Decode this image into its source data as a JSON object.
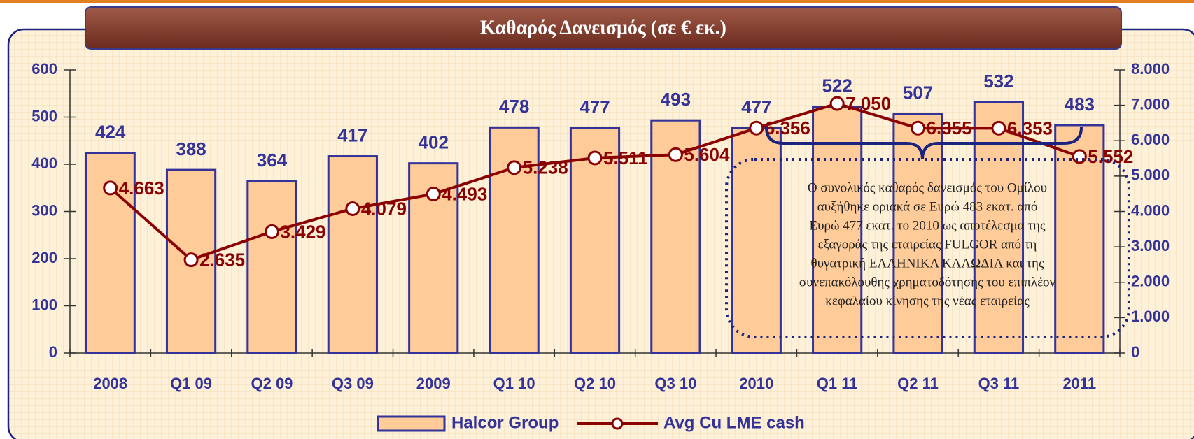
{
  "chart_data": {
    "type": "bar_line",
    "title": "Καθαρός Δανεισμός (σε € εκ.)",
    "categories": [
      "2008",
      "Q1 09",
      "Q2 09",
      "Q3 09",
      "2009",
      "Q1 10",
      "Q2 10",
      "Q3 10",
      "2010",
      "Q1 11",
      "Q2 11",
      "Q3 11",
      "2011"
    ],
    "series": [
      {
        "name": "Halcor Group",
        "type": "bar",
        "color": "#ffcc99",
        "edge": "#333399",
        "values": [
          424,
          388,
          364,
          417,
          402,
          478,
          477,
          493,
          477,
          522,
          507,
          532,
          483
        ]
      },
      {
        "name": "Avg Cu LME cash",
        "type": "line",
        "axis": "y2",
        "color": "#8b0000",
        "values": [
          4663,
          2635,
          3429,
          4079,
          4493,
          5238,
          5511,
          5604,
          6356,
          7050,
          6355,
          6353,
          5552
        ],
        "value_labels": [
          "4.663",
          "2.635",
          "3.429",
          "4.079",
          "4.493",
          "5.238",
          "5.511",
          "5.604",
          "6.356",
          "7.050",
          "6.355",
          "6.353",
          "5.552"
        ]
      }
    ],
    "ylim": [
      0,
      600
    ],
    "yticks": [
      0,
      100,
      200,
      300,
      400,
      500,
      600
    ],
    "y2lim": [
      0,
      8000
    ],
    "y2ticks": [
      0,
      {
        "value": 1000,
        "label": "1.000"
      },
      {
        "value": 2000,
        "label": "2.000"
      },
      {
        "value": 3000,
        "label": "3.000"
      },
      {
        "value": 4000,
        "label": "4.000"
      },
      {
        "value": 5000,
        "label": "5.000"
      },
      {
        "value": 6000,
        "label": "6.000"
      },
      {
        "value": 7000,
        "label": "7.000"
      },
      {
        "value": 8000,
        "label": "8.000"
      }
    ],
    "grid": false,
    "legend": "bottom",
    "annotation": [
      "Ο συνολικός καθαρός δανεισμός του Ομίλου",
      "αυξήθηκε οριακά σε Ευρώ 483 εκατ. από",
      "Ευρώ 477 εκατ. το 2010 ως αποτέλεσμα της",
      "εξαγοράς της εταιρείας FULGOR από τη",
      "θυγατρική ΕΛΛΗΝΙΚΑ ΚΑΛΩΔΙΑ  και της",
      "συνεπακόλουθης χρηματοδότησης του επιπλέον",
      "κεφαλαίου κίνησης της νέας εταιρείας"
    ]
  }
}
